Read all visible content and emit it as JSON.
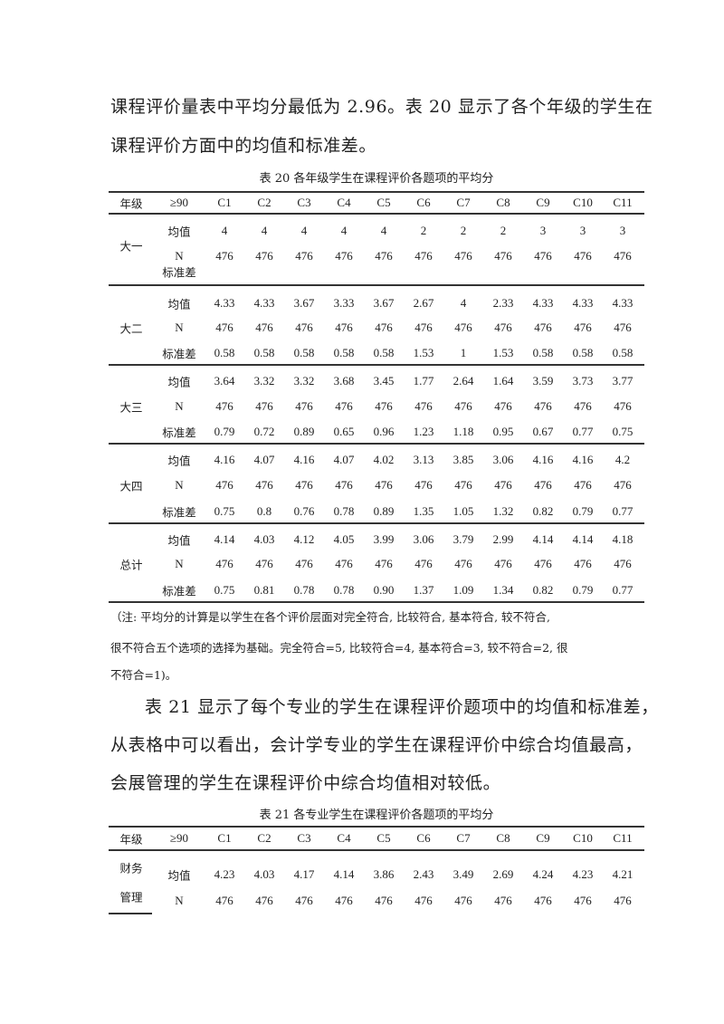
{
  "paragraph1": [
    "课程评价量表中平均分最低为 2.96。表 20 显示了各个年级的学生在",
    "课程评价方面中的均值和标准差。"
  ],
  "table20": {
    "caption": "表 20 各年级学生在课程评价各题项的平均分",
    "headers": [
      "年级",
      "≥90",
      "C1",
      "C2",
      "C3",
      "C4",
      "C5",
      "C6",
      "C7",
      "C8",
      "C9",
      "C10",
      "C11"
    ],
    "groups": [
      {
        "label": "大一",
        "rows": [
          {
            "label": "均值",
            "values": [
              "4",
              "4",
              "4",
              "4",
              "4",
              "2",
              "2",
              "2",
              "3",
              "3",
              "3"
            ]
          },
          {
            "label": "N",
            "values": [
              "476",
              "476",
              "476",
              "476",
              "476",
              "476",
              "476",
              "476",
              "476",
              "476",
              "476"
            ]
          },
          {
            "label": "标准差",
            "values": []
          }
        ]
      },
      {
        "label": "大二",
        "rows": [
          {
            "label": "均值",
            "values": [
              "4.33",
              "4.33",
              "3.67",
              "3.33",
              "3.67",
              "2.67",
              "4",
              "2.33",
              "4.33",
              "4.33",
              "4.33"
            ]
          },
          {
            "label": "N",
            "values": [
              "476",
              "476",
              "476",
              "476",
              "476",
              "476",
              "476",
              "476",
              "476",
              "476",
              "476"
            ]
          },
          {
            "label": "标准差",
            "values": [
              "0.58",
              "0.58",
              "0.58",
              "0.58",
              "0.58",
              "1.53",
              "1",
              "1.53",
              "0.58",
              "0.58",
              "0.58"
            ]
          }
        ]
      },
      {
        "label": "大三",
        "rows": [
          {
            "label": "均值",
            "values": [
              "3.64",
              "3.32",
              "3.32",
              "3.68",
              "3.45",
              "1.77",
              "2.64",
              "1.64",
              "3.59",
              "3.73",
              "3.77"
            ]
          },
          {
            "label": "N",
            "values": [
              "476",
              "476",
              "476",
              "476",
              "476",
              "476",
              "476",
              "476",
              "476",
              "476",
              "476"
            ]
          },
          {
            "label": "标准差",
            "values": [
              "0.79",
              "0.72",
              "0.89",
              "0.65",
              "0.96",
              "1.23",
              "1.18",
              "0.95",
              "0.67",
              "0.77",
              "0.75"
            ]
          }
        ]
      },
      {
        "label": "大四",
        "rows": [
          {
            "label": "均值",
            "values": [
              "4.16",
              "4.07",
              "4.16",
              "4.07",
              "4.02",
              "3.13",
              "3.85",
              "3.06",
              "4.16",
              "4.16",
              "4.2"
            ]
          },
          {
            "label": "N",
            "values": [
              "476",
              "476",
              "476",
              "476",
              "476",
              "476",
              "476",
              "476",
              "476",
              "476",
              "476"
            ]
          },
          {
            "label": "标准差",
            "values": [
              "0.75",
              "0.8",
              "0.76",
              "0.78",
              "0.89",
              "1.35",
              "1.05",
              "1.32",
              "0.82",
              "0.79",
              "0.77"
            ]
          }
        ]
      },
      {
        "label": "总计",
        "rows": [
          {
            "label": "均值",
            "values": [
              "4.14",
              "4.03",
              "4.12",
              "4.05",
              "3.99",
              "3.06",
              "3.79",
              "2.99",
              "4.14",
              "4.14",
              "4.18"
            ]
          },
          {
            "label": "N",
            "values": [
              "476",
              "476",
              "476",
              "476",
              "476",
              "476",
              "476",
              "476",
              "476",
              "476",
              "476"
            ]
          },
          {
            "label": "标准差",
            "values": [
              "0.75",
              "0.81",
              "0.78",
              "0.78",
              "0.90",
              "1.37",
              "1.09",
              "1.34",
              "0.82",
              "0.79",
              "0.77"
            ]
          }
        ]
      }
    ]
  },
  "note": [
    "（注: 平均分的计算是以学生在各个评价层面对完全符合, 比较符合, 基本符合, 较不符合,",
    "很不符合五个选项的选择为基础。完全符合=5, 比较符合=4, 基本符合=3, 较不符合=2, 很",
    "不符合=1)。"
  ],
  "paragraph2": [
    "表 21 显示了每个专业的学生在课程评价题项中的均值和标准差，",
    "从表格中可以看出，会计学专业的学生在课程评价中综合均值最高，",
    "会展管理的学生在课程评价中综合均值相对较低。"
  ],
  "table21": {
    "caption": "表 21 各专业学生在课程评价各题项的平均分",
    "headers": [
      "年级",
      "≥90",
      "C1",
      "C2",
      "C3",
      "C4",
      "C5",
      "C6",
      "C7",
      "C8",
      "C9",
      "C10",
      "C11"
    ],
    "groups": [
      {
        "label_lines": [
          "财务",
          "管理"
        ],
        "rows": [
          {
            "label": "均值",
            "values": [
              "4.23",
              "4.03",
              "4.17",
              "4.14",
              "3.86",
              "2.43",
              "3.49",
              "2.69",
              "4.24",
              "4.23",
              "4.21"
            ]
          },
          {
            "label": "N",
            "values": [
              "476",
              "476",
              "476",
              "476",
              "476",
              "476",
              "476",
              "476",
              "476",
              "476",
              "476"
            ]
          }
        ]
      }
    ]
  }
}
